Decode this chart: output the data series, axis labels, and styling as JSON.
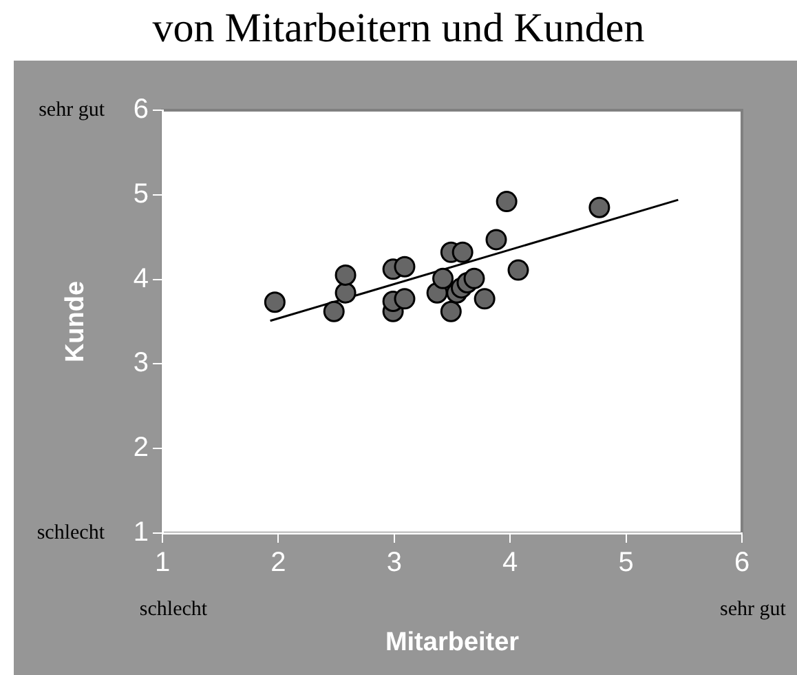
{
  "chart_data": {
    "type": "scatter",
    "title": "von Mitarbeitern und Kunden",
    "xlabel": "Mitarbeiter",
    "ylabel": "Kunde",
    "xlim": [
      1,
      6
    ],
    "xticks": [
      1,
      2,
      3,
      4,
      5,
      6
    ],
    "ylim": [
      1,
      6
    ],
    "yticks": [
      1,
      2,
      3,
      4,
      5,
      6
    ],
    "grid": false,
    "legend": false,
    "annotations": [
      "sehr gut",
      "schlecht",
      "schlecht",
      "sehr gut"
    ],
    "series": [
      {
        "marker": "circle",
        "color": "#666666",
        "x": [
          1.97,
          2.48,
          2.58,
          2.58,
          2.99,
          2.99,
          2.99,
          3.09,
          3.09,
          3.37,
          3.42,
          3.49,
          3.59,
          3.49,
          3.54,
          3.58,
          3.63,
          3.69,
          3.78,
          3.88,
          3.97,
          4.07,
          4.77
        ],
        "values": [
          3.73,
          3.62,
          3.84,
          4.05,
          3.62,
          3.74,
          4.12,
          4.15,
          3.77,
          3.84,
          4.01,
          4.32,
          4.32,
          3.62,
          3.84,
          3.9,
          3.96,
          4.01,
          3.77,
          4.47,
          4.92,
          4.11,
          4.85
        ]
      },
      {
        "type": "line",
        "color": "#000000",
        "x": [
          1.93,
          5.45
        ],
        "values": [
          3.51,
          4.94
        ]
      }
    ]
  }
}
